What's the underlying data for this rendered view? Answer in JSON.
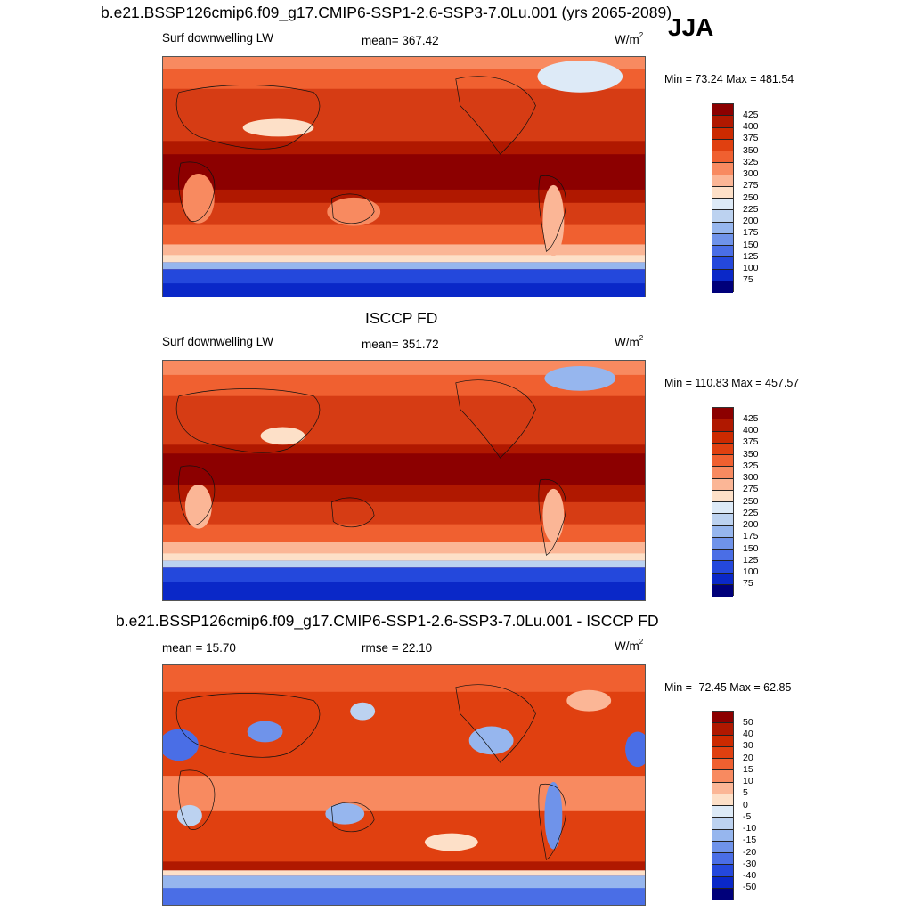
{
  "header": {
    "title": "b.e21.BSSP126cmip6.f09_g17.CMIP6-SSP1-2.6-SSP3-7.0Lu.001 (yrs 2065-2089)",
    "season": "JJA"
  },
  "panels": [
    {
      "title": "",
      "left_label": "Surf downwelling LW",
      "center_label": "mean= 367.42",
      "unit_base": "W/m",
      "unit_exp": "2",
      "minmax": "Min =  73.24 Max = 481.54"
    },
    {
      "title": "ISCCP FD",
      "left_label": "Surf downwelling LW",
      "center_label": "mean= 351.72",
      "unit_base": "W/m",
      "unit_exp": "2",
      "minmax": "Min = 110.83 Max = 457.57"
    },
    {
      "title": "b.e21.BSSP126cmip6.f09_g17.CMIP6-SSP1-2.6-SSP3-7.0Lu.001 - ISCCP FD",
      "left_label": "mean =  15.70",
      "center_label": "rmse =  22.10",
      "unit_base": "W/m",
      "unit_exp": "2",
      "minmax": "Min = -72.45 Max =  62.85"
    }
  ],
  "colorbars": {
    "absolute": {
      "labels": [
        "425",
        "400",
        "375",
        "350",
        "325",
        "300",
        "275",
        "250",
        "225",
        "200",
        "175",
        "150",
        "125",
        "100",
        "75"
      ],
      "colors": [
        "#8c0000",
        "#b01800",
        "#cc2a00",
        "#e04010",
        "#f06030",
        "#f88a60",
        "#fbb696",
        "#fde0c8",
        "#ddeaf7",
        "#bcd2f0",
        "#96b6ee",
        "#6f93ea",
        "#4a6ee6",
        "#2448dc",
        "#0a28c8",
        "#00007a"
      ]
    },
    "difference": {
      "labels": [
        "50",
        "40",
        "30",
        "20",
        "15",
        "10",
        "5",
        "0",
        "-5",
        "-10",
        "-15",
        "-20",
        "-30",
        "-40",
        "-50"
      ],
      "colors": [
        "#8c0000",
        "#b01800",
        "#cc2a00",
        "#e04010",
        "#f06030",
        "#f88a60",
        "#fbb696",
        "#fde0c8",
        "#ddeaf7",
        "#bcd2f0",
        "#96b6ee",
        "#6f93ea",
        "#4a6ee6",
        "#2448dc",
        "#0a28c8",
        "#00007a"
      ]
    }
  }
}
